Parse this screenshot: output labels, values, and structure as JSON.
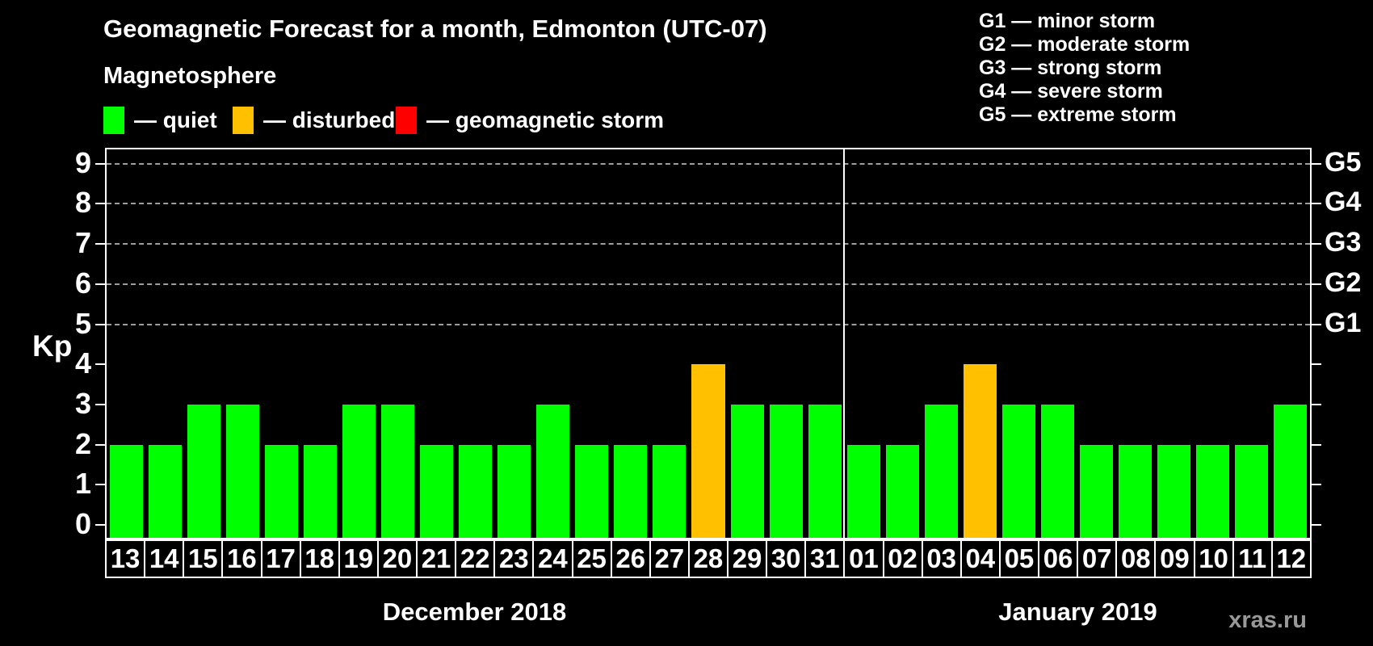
{
  "title": "Geomagnetic Forecast for a month, Edmonton (UTC-07)",
  "subtitle": "Magnetosphere",
  "legend": {
    "items": [
      {
        "name": "quiet",
        "label": "— quiet",
        "color": "#00ff00"
      },
      {
        "name": "disturbed",
        "label": "— disturbed",
        "color": "#ffc000"
      },
      {
        "name": "storm",
        "label": "— geomagnetic storm",
        "color": "#ff0000"
      }
    ]
  },
  "storm_scale": [
    "G1 — minor storm",
    "G2 — moderate storm",
    "G3 — strong storm",
    "G4 — severe storm",
    "G5 — extreme storm"
  ],
  "watermark": "xras.ru",
  "chart_data": {
    "type": "bar",
    "title": "Geomagnetic Forecast for a month, Edmonton (UTC-07)",
    "ylabel": "Kp",
    "xlabel": "",
    "ylim": [
      -0.3,
      9.4
    ],
    "y_ticks": [
      0,
      1,
      2,
      3,
      4,
      5,
      6,
      7,
      8,
      9
    ],
    "grid": "horizontal dashed lines at Kp 5-9",
    "grid_color": "#9e9e9e",
    "right_axis_labels": [
      {
        "kp": 5,
        "label": "G1"
      },
      {
        "kp": 6,
        "label": "G2"
      },
      {
        "kp": 7,
        "label": "G3"
      },
      {
        "kp": 8,
        "label": "G4"
      },
      {
        "kp": 9,
        "label": "G5"
      }
    ],
    "color_rule": {
      "quiet_max_kp": 3,
      "disturbed_min_kp": 4,
      "storm_min_kp": 5
    },
    "months": [
      {
        "label": "December 2018",
        "days": [
          "13",
          "14",
          "15",
          "16",
          "17",
          "18",
          "19",
          "20",
          "21",
          "22",
          "23",
          "24",
          "25",
          "26",
          "27",
          "28",
          "29",
          "30",
          "31"
        ],
        "values": [
          2,
          2,
          3,
          3,
          2,
          2,
          3,
          3,
          2,
          2,
          2,
          3,
          2,
          2,
          2,
          4,
          3,
          3,
          3
        ]
      },
      {
        "label": "January 2019",
        "days": [
          "01",
          "02",
          "03",
          "04",
          "05",
          "06",
          "07",
          "08",
          "09",
          "10",
          "11",
          "12"
        ],
        "values": [
          2,
          2,
          3,
          4,
          3,
          3,
          2,
          2,
          2,
          2,
          2,
          3
        ]
      }
    ]
  }
}
